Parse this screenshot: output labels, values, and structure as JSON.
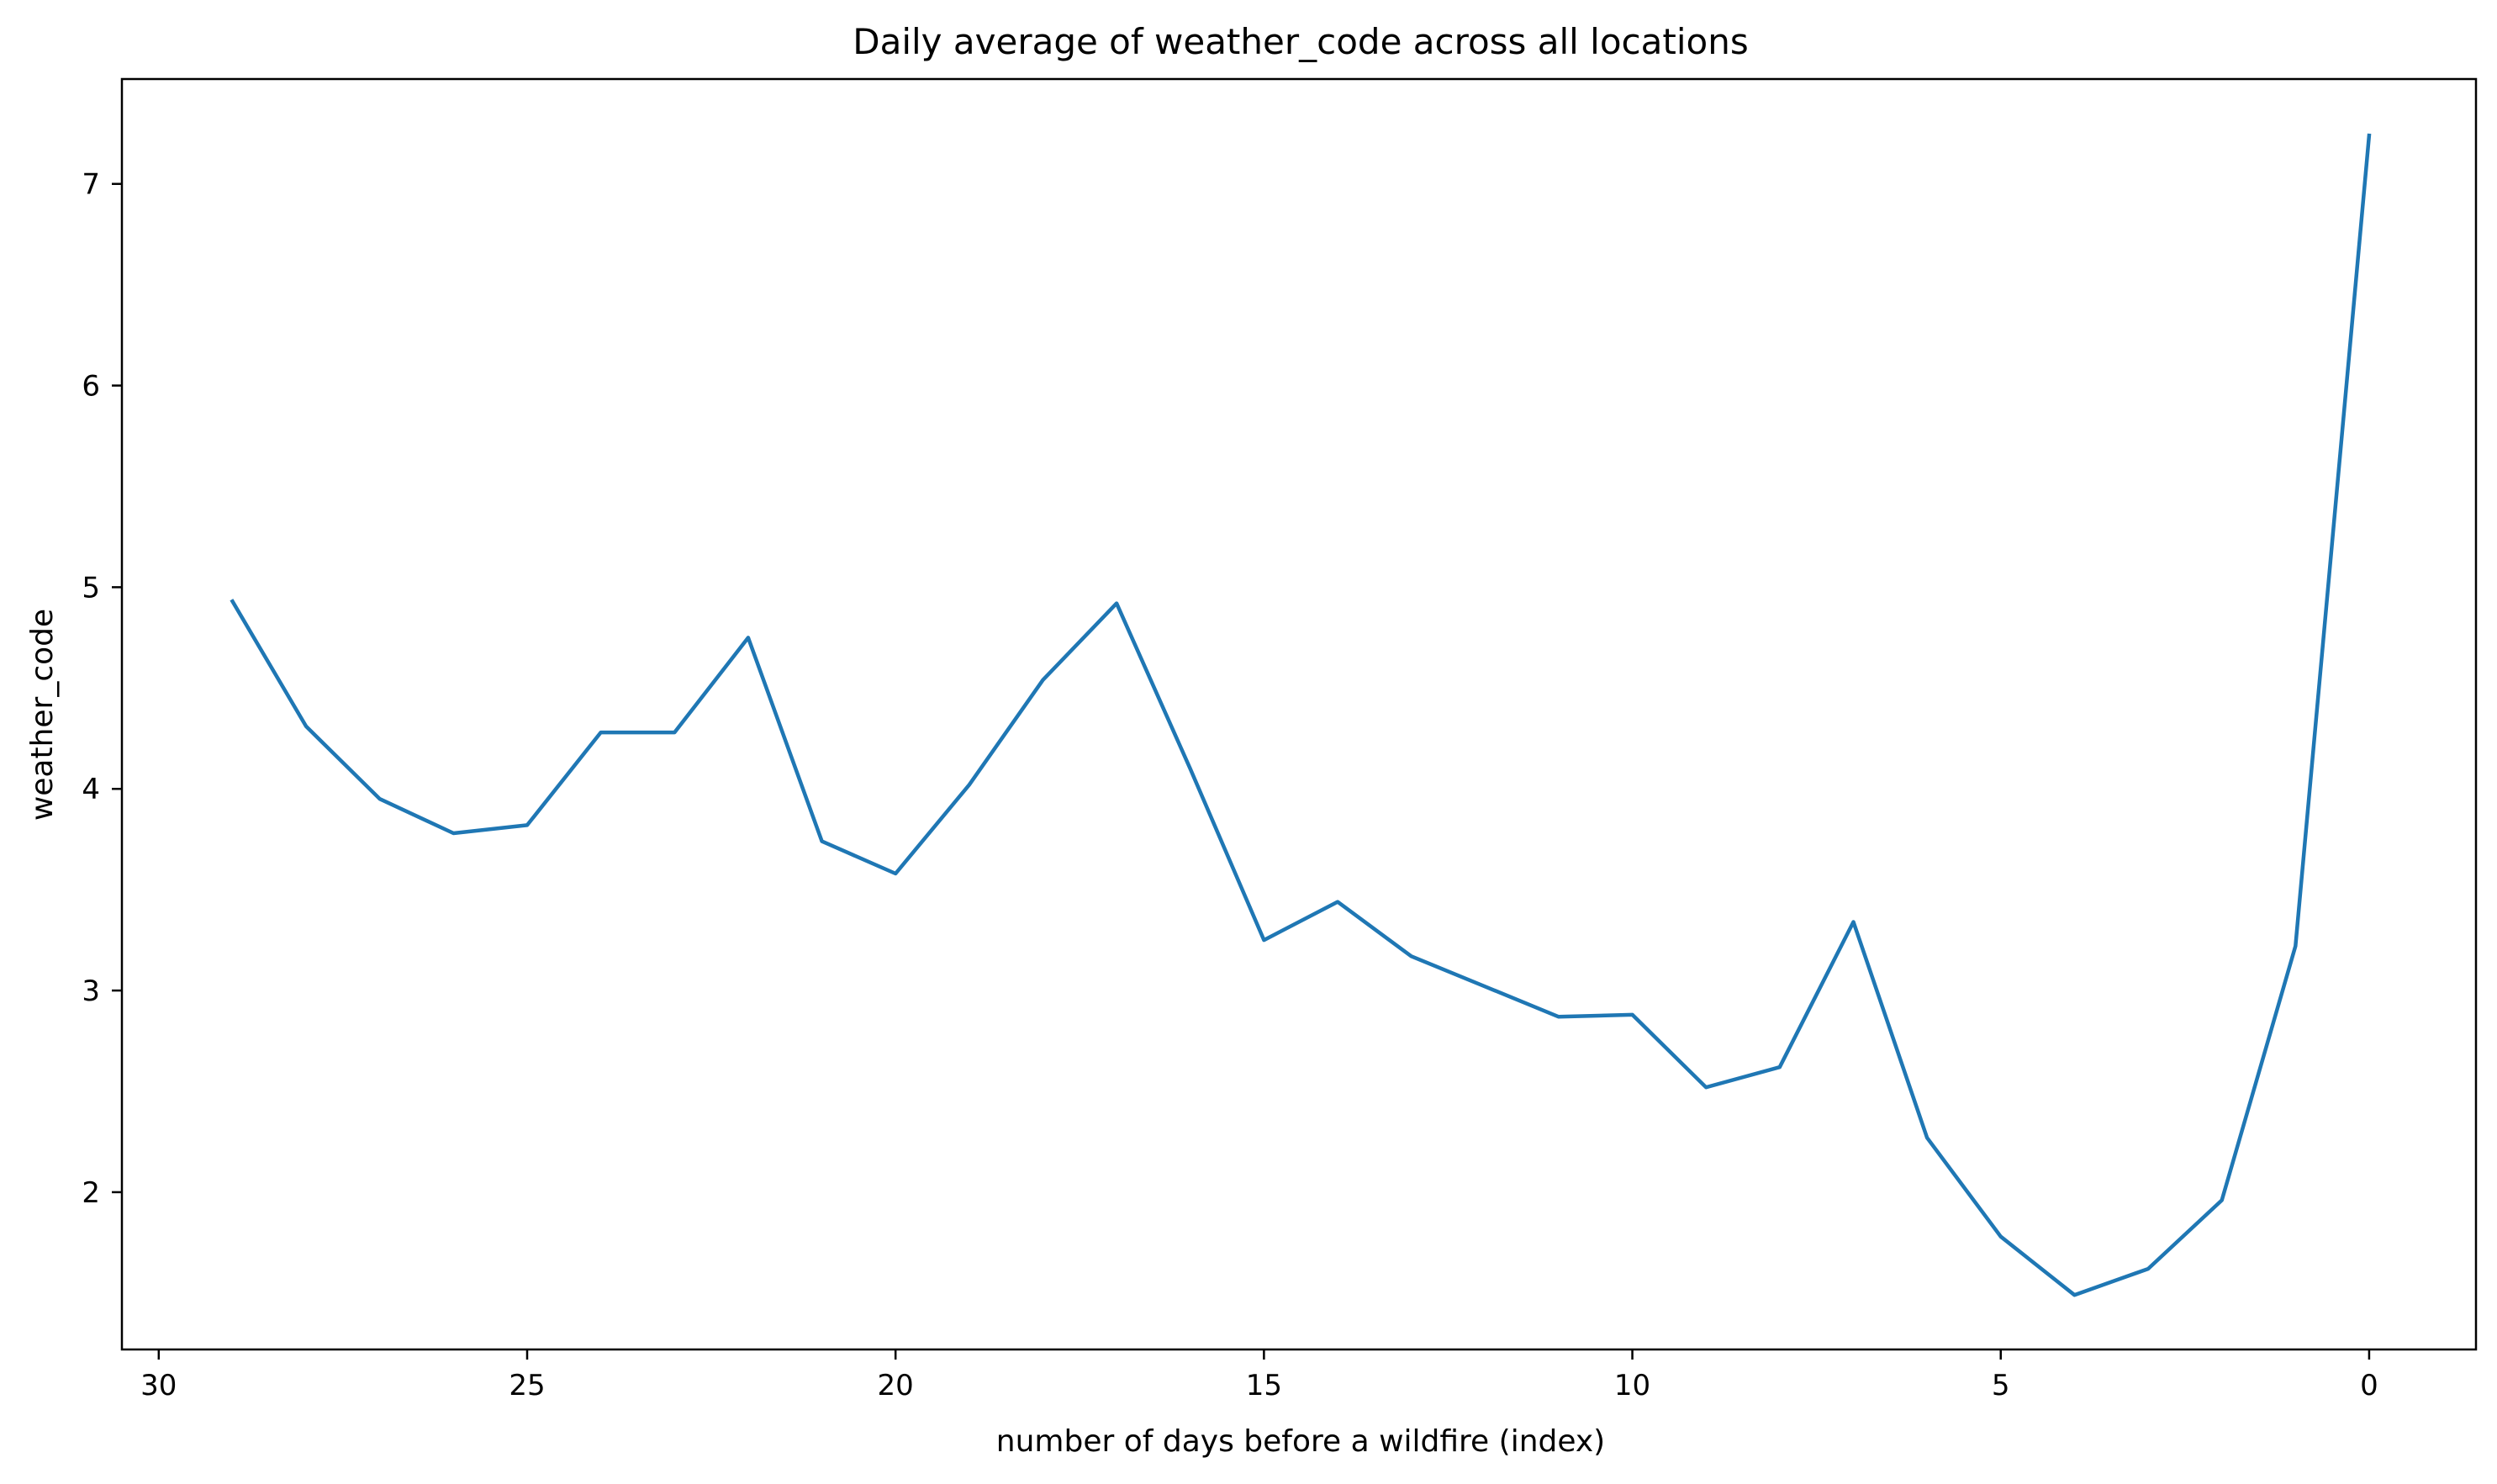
{
  "chart_data": {
    "type": "line",
    "title": "Daily average of weather_code across all locations",
    "xlabel": "number of days before a wildfire (index)",
    "ylabel": "weather_code",
    "x_inverted": true,
    "xlim": [
      30.5,
      -1.45
    ],
    "ylim": [
      1.22,
      7.52
    ],
    "xticks": [
      30,
      25,
      20,
      15,
      10,
      5,
      0
    ],
    "yticks": [
      2,
      3,
      4,
      5,
      6,
      7
    ],
    "grid": false,
    "legend": "none",
    "series": [
      {
        "color": "#1f77b4",
        "x": [
          29,
          28,
          27,
          26,
          25,
          24,
          23,
          22,
          21,
          20,
          19,
          18,
          17,
          16,
          15,
          14,
          13,
          12,
          11,
          10,
          9,
          8,
          7,
          6,
          5,
          4,
          3,
          2,
          1,
          0
        ],
        "y": [
          4.93,
          4.31,
          3.95,
          3.78,
          3.82,
          4.28,
          4.28,
          4.75,
          3.74,
          3.58,
          4.02,
          4.54,
          4.92,
          4.1,
          3.25,
          3.44,
          3.17,
          3.02,
          2.87,
          2.88,
          2.52,
          2.62,
          3.34,
          2.27,
          1.78,
          1.49,
          1.62,
          1.96,
          3.22,
          7.24
        ]
      }
    ]
  }
}
